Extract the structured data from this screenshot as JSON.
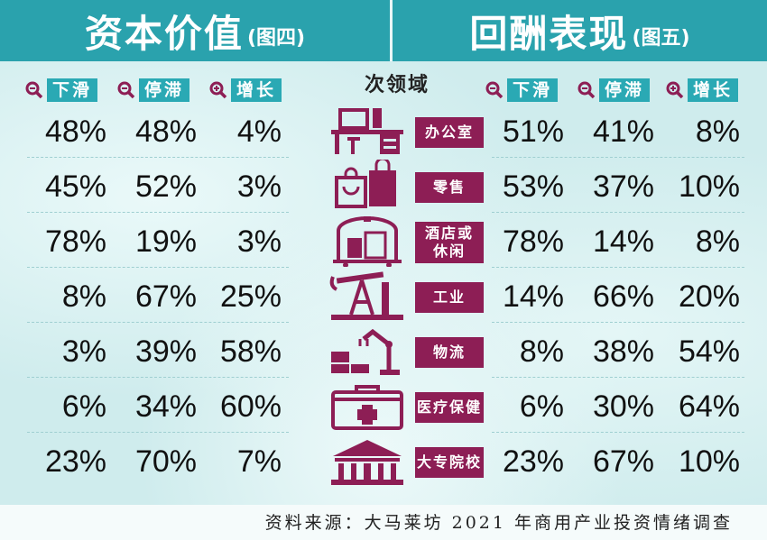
{
  "header": {
    "left_title": "资本价值",
    "left_sub": "(图四)",
    "right_title": "回酬表现",
    "right_sub": "(图五)"
  },
  "section_title": "次领域",
  "column_labels": {
    "decline": "下滑",
    "stagnant": "停滞",
    "growth": "增长"
  },
  "colors": {
    "header_bg": "#2aa2ad",
    "tag_bg": "#2aa9b4",
    "label_bg": "#8d1e55",
    "icon": "#8d1e55"
  },
  "source": "资料来源：大马莱坊 2021 年商用产业投资情绪调查",
  "chart_data": [
    {
      "type": "table",
      "title": "资本价值",
      "columns": [
        "下滑",
        "停滞",
        "增长"
      ],
      "categories": [
        "办公室",
        "零售",
        "酒店或休闲",
        "工业",
        "物流",
        "医疗保健",
        "大专院校"
      ],
      "rows": [
        [
          "48%",
          "48%",
          "4%"
        ],
        [
          "45%",
          "52%",
          "3%"
        ],
        [
          "78%",
          "19%",
          "3%"
        ],
        [
          "8%",
          "67%",
          "25%"
        ],
        [
          "3%",
          "39%",
          "58%"
        ],
        [
          "6%",
          "34%",
          "60%"
        ],
        [
          "23%",
          "70%",
          "7%"
        ]
      ]
    },
    {
      "type": "table",
      "title": "回酬表现",
      "columns": [
        "下滑",
        "停滞",
        "增长"
      ],
      "categories": [
        "办公室",
        "零售",
        "酒店或休闲",
        "工业",
        "物流",
        "医疗保健",
        "大专院校"
      ],
      "rows": [
        [
          "51%",
          "41%",
          "8%"
        ],
        [
          "53%",
          "37%",
          "10%"
        ],
        [
          "78%",
          "14%",
          "8%"
        ],
        [
          "14%",
          "66%",
          "20%"
        ],
        [
          "8%",
          "38%",
          "54%"
        ],
        [
          "6%",
          "30%",
          "64%"
        ],
        [
          "23%",
          "67%",
          "10%"
        ]
      ]
    }
  ],
  "row_labels": [
    {
      "line1": "办公室",
      "line2": "",
      "icon": "office-desk-icon"
    },
    {
      "line1": "零售",
      "line2": "",
      "icon": "shopping-bag-icon"
    },
    {
      "line1": "酒店或",
      "line2": "休闲",
      "icon": "hotel-luggage-cart-icon"
    },
    {
      "line1": "工业",
      "line2": "",
      "icon": "oil-pump-icon"
    },
    {
      "line1": "物流",
      "line2": "",
      "icon": "robot-arm-boxes-icon"
    },
    {
      "line1": "医疗保健",
      "line2": "",
      "icon": "medical-kit-icon"
    },
    {
      "line1": "大专院校",
      "line2": "",
      "icon": "university-building-icon"
    }
  ]
}
